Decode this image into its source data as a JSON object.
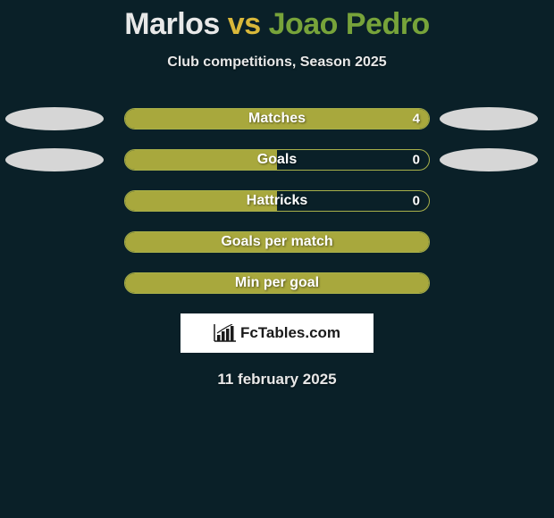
{
  "background_color": "#0a2028",
  "title": {
    "player1": "Marlos",
    "vs": "vs",
    "player2": "Joao Pedro",
    "player1_color": "#e8e8e8",
    "vs_color": "#d9b83a",
    "player2_color": "#77a33a",
    "fontsize": 34
  },
  "subtitle": {
    "text": "Club competitions, Season 2025",
    "color": "#e8e8e8",
    "fontsize": 16
  },
  "stats": [
    {
      "label": "Matches",
      "value_right": "4",
      "fill": "full",
      "show_left_ellipse": true,
      "show_right_ellipse": true
    },
    {
      "label": "Goals",
      "value_right": "0",
      "fill": "left",
      "show_left_ellipse": true,
      "show_right_ellipse": true
    },
    {
      "label": "Hattricks",
      "value_right": "0",
      "fill": "left",
      "show_left_ellipse": false,
      "show_right_ellipse": false
    },
    {
      "label": "Goals per match",
      "value_right": "",
      "fill": "full",
      "show_left_ellipse": false,
      "show_right_ellipse": false
    },
    {
      "label": "Min per goal",
      "value_right": "",
      "fill": "full",
      "show_left_ellipse": false,
      "show_right_ellipse": false
    }
  ],
  "bar_style": {
    "track_width": 342,
    "track_height": 24,
    "border_color": "#a8b04a",
    "fill_color": "#a8a83d",
    "label_color": "#ffffff",
    "label_fontsize": 16,
    "border_radius": 12
  },
  "ellipse_style": {
    "width": 110,
    "height": 26,
    "color": "#d6d6d6"
  },
  "logo": {
    "text": "FcTables.com",
    "background": "#ffffff",
    "text_color": "#1a1a1a",
    "fontsize": 17
  },
  "date": {
    "text": "11 february 2025",
    "color": "#e8e8e8",
    "fontsize": 17
  }
}
